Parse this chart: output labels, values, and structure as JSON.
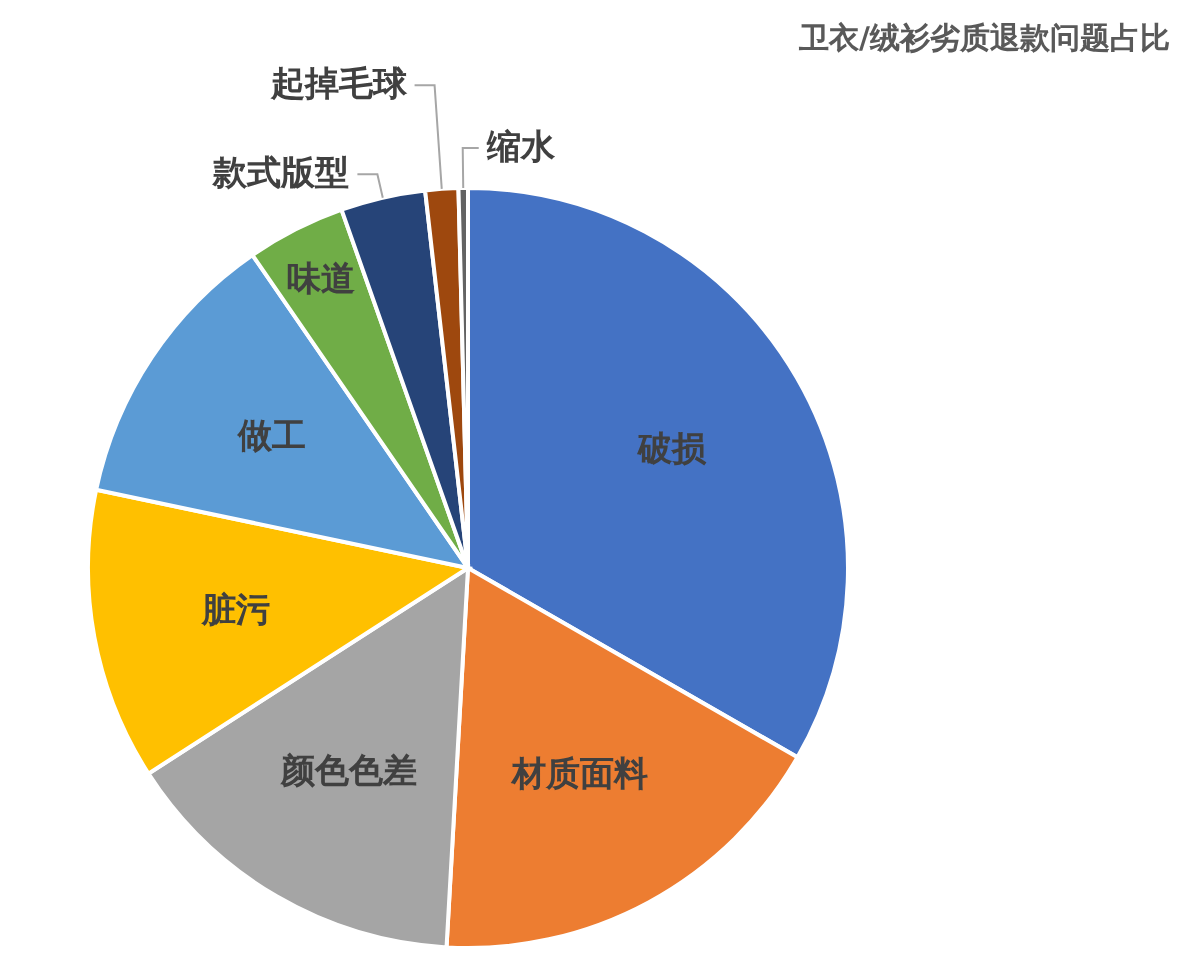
{
  "chart_data": {
    "type": "pie",
    "title": "卫衣/绒衫劣质退款问题占比",
    "categories": [
      "破损",
      "材质面料",
      "颜色色差",
      "脏污",
      "做工",
      "味道",
      "款式版型",
      "起掉毛球",
      "缩水"
    ],
    "values": [
      33.3,
      17.6,
      15,
      12.4,
      12.1,
      4.2,
      3.6,
      1.4,
      0.4
    ],
    "colors": [
      "#4472c4",
      "#ed7d31",
      "#a5a5a5",
      "#ffc000",
      "#5b9bd5",
      "#70ad47",
      "#264478",
      "#9e480e",
      "#636363"
    ]
  }
}
